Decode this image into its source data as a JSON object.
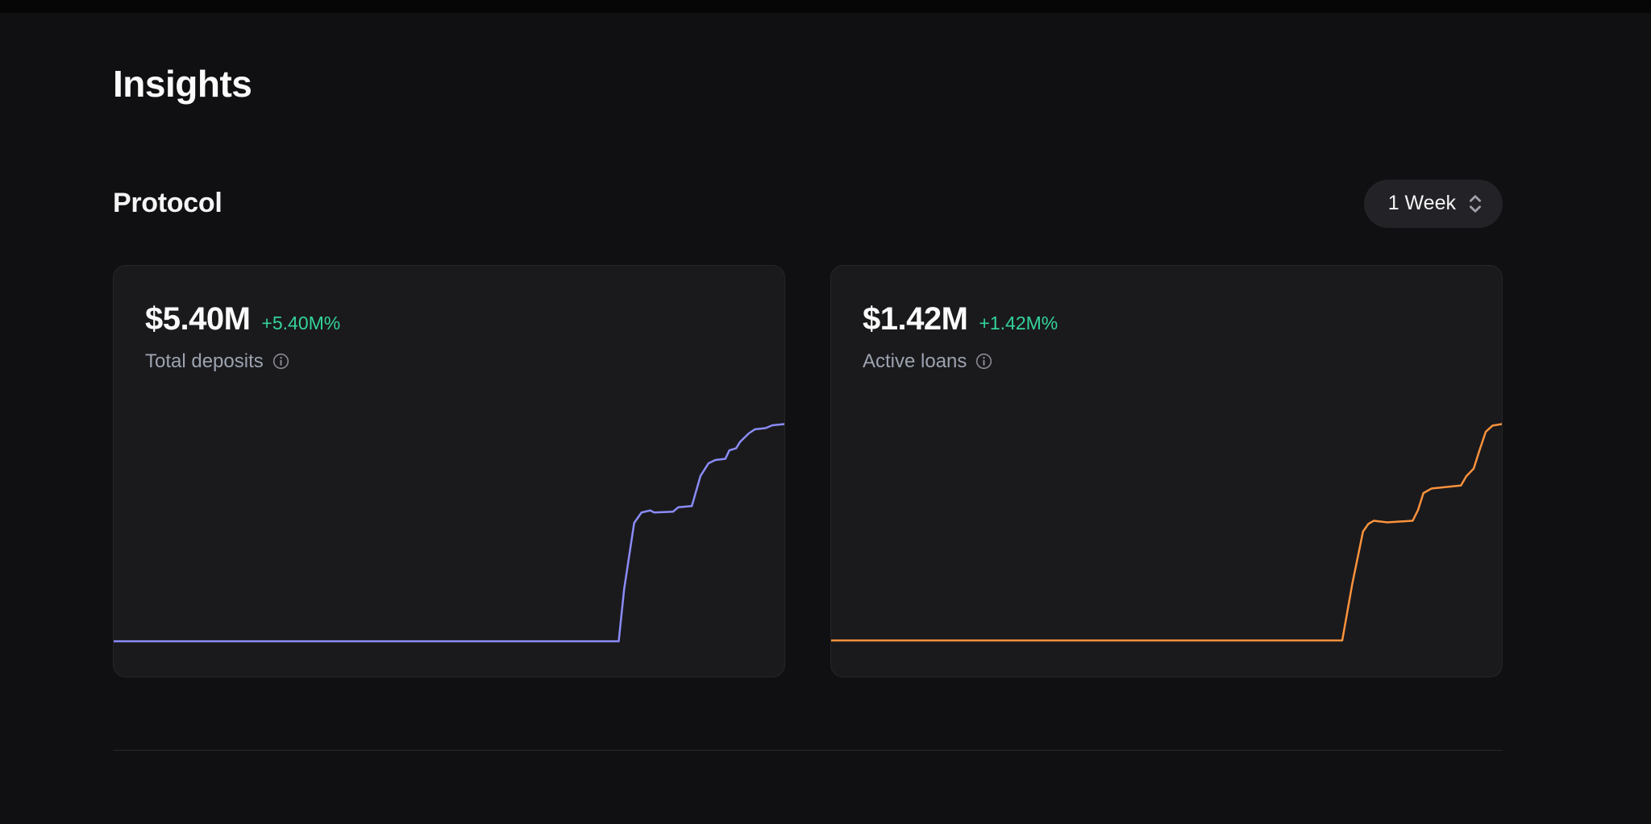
{
  "page": {
    "title": "Insights"
  },
  "section": {
    "title": "Protocol",
    "period_selector": {
      "value": "1 Week"
    }
  },
  "cards": [
    {
      "value": "$5.40M",
      "change": "+5.40M%",
      "label": "Total deposits",
      "accent": "#8b8cf8"
    },
    {
      "value": "$1.42M",
      "change": "+1.42M%",
      "label": "Active loans",
      "accent": "#fb923c"
    }
  ],
  "colors": {
    "page_background": "#101012",
    "card_background": "#1a1a1d",
    "positive_change": "#34d399",
    "muted_label": "#9ca3af",
    "deposits_line": "#8b8cf8",
    "loans_line": "#fb923c"
  },
  "chart_data": [
    {
      "type": "line",
      "title": "Total deposits",
      "unit": "$M",
      "grid": false,
      "legend": false,
      "xlim": [
        0,
        100
      ],
      "ylim": [
        0,
        5.4
      ],
      "series": [
        {
          "name": "Total deposits",
          "color": "#8b8cf8",
          "points": [
            [
              0,
              0.02
            ],
            [
              75.3,
              0.02
            ],
            [
              76.1,
              1.3
            ],
            [
              77.6,
              2.95
            ],
            [
              78.7,
              3.21
            ],
            [
              80.0,
              3.26
            ],
            [
              80.6,
              3.21
            ],
            [
              83.4,
              3.23
            ],
            [
              84.2,
              3.34
            ],
            [
              86.2,
              3.37
            ],
            [
              86.6,
              3.6
            ],
            [
              87.5,
              4.12
            ],
            [
              88.7,
              4.43
            ],
            [
              89.7,
              4.51
            ],
            [
              91.2,
              4.54
            ],
            [
              91.8,
              4.75
            ],
            [
              92.8,
              4.8
            ],
            [
              93.4,
              4.96
            ],
            [
              94.7,
              5.17
            ],
            [
              95.6,
              5.27
            ],
            [
              97.2,
              5.3
            ],
            [
              98.2,
              5.37
            ],
            [
              100,
              5.4
            ]
          ]
        }
      ]
    },
    {
      "type": "line",
      "title": "Active loans",
      "unit": "$M",
      "grid": false,
      "legend": false,
      "xlim": [
        0,
        100
      ],
      "ylim": [
        0,
        1.42
      ],
      "series": [
        {
          "name": "Active loans",
          "color": "#fb923c",
          "points": [
            [
              0,
              0.01
            ],
            [
              76.2,
              0.01
            ],
            [
              77.7,
              0.38
            ],
            [
              79.3,
              0.72
            ],
            [
              80.1,
              0.77
            ],
            [
              80.9,
              0.79
            ],
            [
              82.9,
              0.78
            ],
            [
              86.7,
              0.79
            ],
            [
              87.5,
              0.86
            ],
            [
              88.3,
              0.97
            ],
            [
              89.5,
              1.0
            ],
            [
              93.9,
              1.02
            ],
            [
              94.7,
              1.08
            ],
            [
              95.8,
              1.13
            ],
            [
              96.6,
              1.24
            ],
            [
              97.6,
              1.37
            ],
            [
              98.6,
              1.41
            ],
            [
              100,
              1.42
            ]
          ]
        }
      ]
    }
  ]
}
